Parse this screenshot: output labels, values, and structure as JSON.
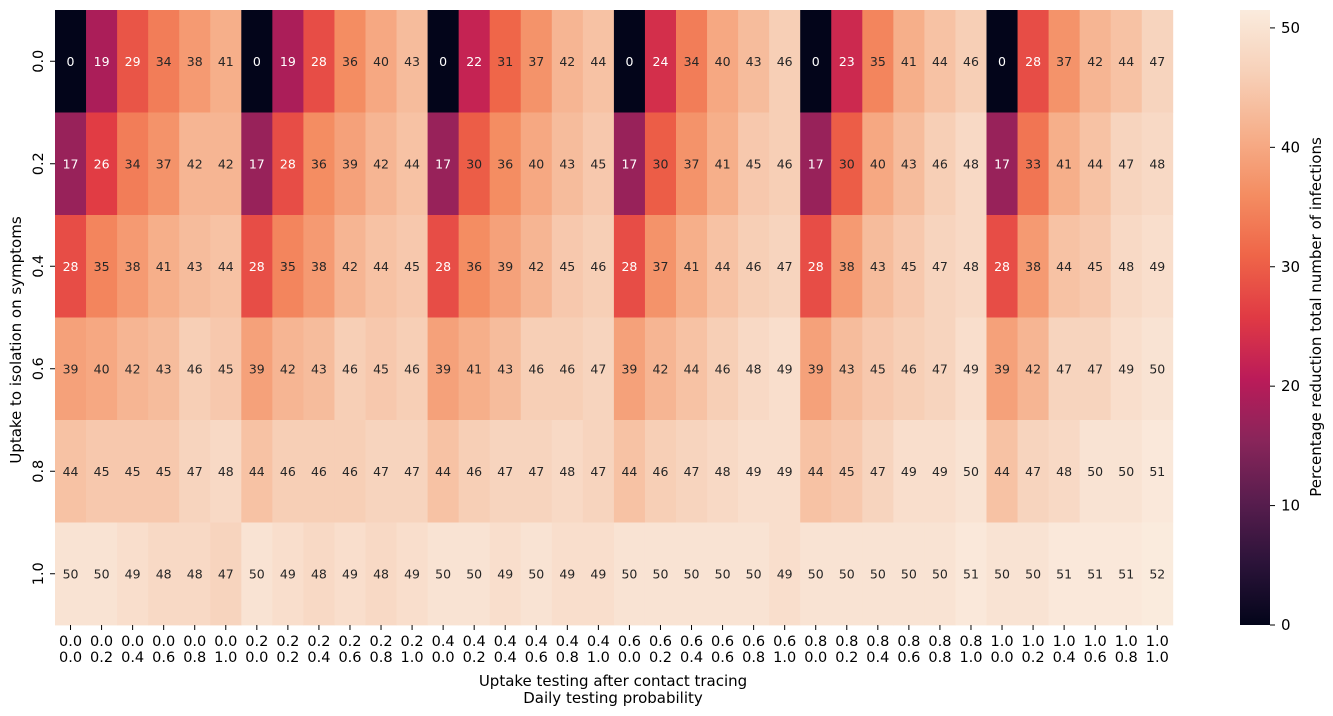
{
  "chart_data": {
    "type": "heatmap",
    "title": "",
    "xlabel_line1": "Uptake testing after contact tracing",
    "xlabel_line2": "Daily testing probability",
    "ylabel": "Uptake to isolation on symptoms",
    "colorbar_label": "Percentage reduction total number of infections",
    "colorbar_ticks": [
      "0",
      "10",
      "20",
      "30",
      "40",
      "50"
    ],
    "value_range": [
      0,
      51.5
    ],
    "x_top_labels": [
      "0.0",
      "0.0",
      "0.0",
      "0.0",
      "0.0",
      "0.0",
      "0.2",
      "0.2",
      "0.2",
      "0.2",
      "0.2",
      "0.2",
      "0.4",
      "0.4",
      "0.4",
      "0.4",
      "0.4",
      "0.4",
      "0.6",
      "0.6",
      "0.6",
      "0.6",
      "0.6",
      "0.6",
      "0.8",
      "0.8",
      "0.8",
      "0.8",
      "0.8",
      "0.8",
      "1.0",
      "1.0",
      "1.0",
      "1.0",
      "1.0",
      "1.0"
    ],
    "x_bottom_labels": [
      "0.0",
      "0.2",
      "0.4",
      "0.6",
      "0.8",
      "1.0",
      "0.0",
      "0.2",
      "0.4",
      "0.6",
      "0.8",
      "1.0",
      "0.0",
      "0.2",
      "0.4",
      "0.6",
      "0.8",
      "1.0",
      "0.0",
      "0.2",
      "0.4",
      "0.6",
      "0.8",
      "1.0",
      "0.0",
      "0.2",
      "0.4",
      "0.6",
      "0.8",
      "1.0",
      "0.0",
      "0.2",
      "0.4",
      "0.6",
      "0.8",
      "1.0"
    ],
    "y_labels": [
      "0.0",
      "0.2",
      "0.4",
      "0.6",
      "0.8",
      "1.0"
    ],
    "values": [
      [
        0,
        19,
        29,
        34,
        38,
        41,
        0,
        19,
        28,
        36,
        40,
        43,
        0,
        22,
        31,
        37,
        42,
        44,
        0,
        24,
        34,
        40,
        43,
        46,
        0,
        23,
        35,
        41,
        44,
        46,
        0,
        28,
        37,
        42,
        44,
        47
      ],
      [
        17,
        26,
        34,
        37,
        42,
        42,
        17,
        28,
        36,
        39,
        42,
        44,
        17,
        30,
        36,
        40,
        43,
        45,
        17,
        30,
        37,
        41,
        45,
        46,
        17,
        30,
        40,
        43,
        46,
        48,
        17,
        33,
        41,
        44,
        47,
        48
      ],
      [
        28,
        35,
        38,
        41,
        43,
        44,
        28,
        35,
        38,
        42,
        44,
        45,
        28,
        36,
        39,
        42,
        45,
        46,
        28,
        37,
        41,
        44,
        46,
        47,
        28,
        38,
        43,
        45,
        47,
        48,
        28,
        38,
        44,
        45,
        48,
        49
      ],
      [
        39,
        40,
        42,
        43,
        46,
        45,
        39,
        42,
        43,
        46,
        45,
        46,
        39,
        41,
        43,
        46,
        46,
        47,
        39,
        42,
        44,
        46,
        48,
        49,
        39,
        43,
        45,
        46,
        47,
        49,
        39,
        42,
        47,
        47,
        49,
        50
      ],
      [
        44,
        45,
        45,
        45,
        47,
        48,
        44,
        46,
        46,
        46,
        47,
        47,
        44,
        46,
        47,
        47,
        48,
        47,
        44,
        46,
        47,
        48,
        49,
        49,
        44,
        45,
        47,
        49,
        49,
        50,
        44,
        47,
        48,
        50,
        50,
        51
      ],
      [
        50,
        50,
        49,
        48,
        48,
        47,
        50,
        49,
        48,
        49,
        48,
        49,
        50,
        50,
        49,
        50,
        49,
        49,
        50,
        50,
        50,
        50,
        50,
        49,
        50,
        50,
        50,
        50,
        50,
        51,
        50,
        50,
        51,
        51,
        51,
        52
      ]
    ]
  }
}
